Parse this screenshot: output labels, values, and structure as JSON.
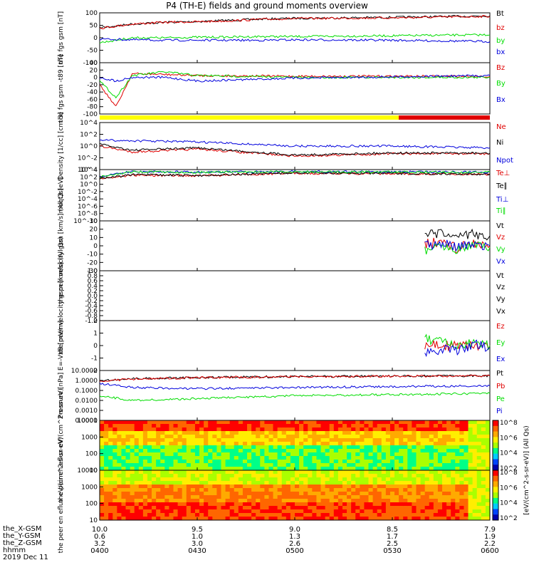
{
  "title": "P4 (TH-E) fields and ground moments overview",
  "colors": {
    "black": "#000000",
    "red": "#e00000",
    "green": "#00dd00",
    "blue": "#0000dd",
    "yellow": "#ffff00"
  },
  "x_axis": {
    "tick_labels": [
      "0400",
      "0430",
      "0500",
      "0530",
      "0600"
    ],
    "rows": [
      {
        "name": "the_X-GSM",
        "values": [
          "10.0",
          "9.5",
          "9.0",
          "8.5",
          "7.9"
        ]
      },
      {
        "name": "the_Y-GSM",
        "values": [
          "0.6",
          "1.0",
          "1.3",
          "1.7",
          "1.9"
        ]
      },
      {
        "name": "the_Z-GSM",
        "values": [
          "3.2",
          "3.0",
          "2.6",
          "2.5",
          "2.2"
        ]
      },
      {
        "name": "hhmm",
        "values": [
          "0400",
          "0430",
          "0500",
          "0530",
          "0600"
        ]
      }
    ],
    "date": "2019 Dec 11"
  },
  "colorbar_label": "[eV/(cm^2-s-sr-eV)] (All Qs)",
  "chart_data": [
    {
      "type": "line",
      "panel": "the fgs gsm",
      "ylabel": "the fgs gsm [nT]",
      "yticks": [
        "100",
        "50",
        "0",
        "-50",
        "-100"
      ],
      "ylim": [
        -100,
        100
      ],
      "legend": [
        "Bt",
        "bz",
        "by",
        "bx"
      ],
      "series": [
        {
          "name": "Bt",
          "color": "#000000",
          "x": [
            "0400",
            "0410",
            "0420",
            "0430",
            "0440",
            "0450",
            "0500",
            "0530",
            "0600"
          ],
          "y": [
            40,
            55,
            62,
            65,
            70,
            75,
            78,
            82,
            88
          ]
        },
        {
          "name": "bz",
          "color": "#e00000",
          "x": [
            "0400",
            "0410",
            "0420",
            "0430",
            "0440",
            "0450",
            "0500",
            "0530",
            "0600"
          ],
          "y": [
            38,
            55,
            62,
            64,
            68,
            74,
            77,
            80,
            86
          ]
        },
        {
          "name": "by",
          "color": "#00dd00",
          "x": [
            "0400",
            "0410",
            "0420",
            "0430",
            "0440",
            "0450",
            "0500",
            "0530",
            "0600"
          ],
          "y": [
            -20,
            0,
            0,
            2,
            3,
            5,
            5,
            8,
            12
          ]
        },
        {
          "name": "bx",
          "color": "#0000dd",
          "x": [
            "0400",
            "0410",
            "0420",
            "0430",
            "0440",
            "0450",
            "0500",
            "0530",
            "0600"
          ],
          "y": [
            -5,
            -8,
            -10,
            -10,
            -10,
            -10,
            -8,
            -10,
            -15
          ]
        }
      ]
    },
    {
      "type": "line",
      "panel": "the fgs gsm -t89",
      "ylabel": "the fgs gsm -t89 [nT]",
      "yticks": [
        "40",
        "20",
        "0",
        "-20",
        "-40",
        "-60",
        "-80",
        "-100"
      ],
      "ylim": [
        -100,
        40
      ],
      "legend": [
        "Bz",
        "By",
        "Bx"
      ],
      "series": [
        {
          "name": "Bz",
          "color": "#e00000",
          "x": [
            "0400",
            "0405",
            "0410",
            "0420",
            "0430",
            "0500",
            "0600"
          ],
          "y": [
            -20,
            -80,
            10,
            8,
            5,
            3,
            3
          ]
        },
        {
          "name": "By",
          "color": "#00dd00",
          "x": [
            "0400",
            "0405",
            "0410",
            "0420",
            "0430",
            "0500",
            "0600"
          ],
          "y": [
            -10,
            -55,
            5,
            15,
            5,
            0,
            0
          ]
        },
        {
          "name": "Bx",
          "color": "#0000dd",
          "x": [
            "0400",
            "0405",
            "0410",
            "0420",
            "0430",
            "0500",
            "0600"
          ],
          "y": [
            0,
            -10,
            0,
            0,
            -10,
            -2,
            5
          ]
        }
      ]
    },
    {
      "type": "line",
      "panel": "Density",
      "ylabel": "Density [1/cc] [cm-3]",
      "yticks": [
        "10^4",
        "10^2",
        "10^0",
        "10^-2",
        "10^-4"
      ],
      "y_scale": "log",
      "legend": [
        "Ne",
        "Ni",
        "Npot"
      ],
      "series": [
        {
          "name": "Ne",
          "color": "#e00000",
          "x": [
            "0400",
            "0410",
            "0430",
            "0500",
            "0530",
            "0600"
          ],
          "y": [
            1,
            0.1,
            0.3,
            0.02,
            0.05,
            0.05
          ]
        },
        {
          "name": "Ni",
          "color": "#000000",
          "x": [
            "0400",
            "0410",
            "0430",
            "0500",
            "0530",
            "0600"
          ],
          "y": [
            2,
            0.2,
            0.5,
            0.03,
            0.07,
            0.06
          ]
        },
        {
          "name": "Npot",
          "color": "#0000dd",
          "x": [
            "0400",
            "0410",
            "0430",
            "0500",
            "0530",
            "0600"
          ],
          "y": [
            10,
            8,
            5,
            1,
            1,
            0.5
          ]
        }
      ]
    },
    {
      "type": "line",
      "panel": "moqt3",
      "ylabel": "moqt3 [eV]",
      "yticks": [
        "10^4",
        "10^2",
        "10^0",
        "10^-2",
        "10^-4",
        "10^-6",
        "10^-8",
        "10^-10"
      ],
      "y_scale": "log",
      "legend": [
        "Te⊥",
        "Te∥",
        "Ti⊥",
        "Ti∥"
      ],
      "series": [
        {
          "name": "Te⊥",
          "color": "#e00000",
          "x": [
            "0400",
            "0410",
            "0430",
            "0500",
            "0600"
          ],
          "y": [
            30,
            300,
            200,
            1000,
            500
          ]
        },
        {
          "name": "Te∥",
          "color": "#000000",
          "x": [
            "0400",
            "0410",
            "0430",
            "0500",
            "0600"
          ],
          "y": [
            40,
            400,
            250,
            1200,
            600
          ]
        },
        {
          "name": "Ti⊥",
          "color": "#0000dd",
          "x": [
            "0400",
            "0410",
            "0430",
            "0500",
            "0600"
          ],
          "y": [
            100,
            3000,
            2000,
            3000,
            2000
          ]
        },
        {
          "name": "Ti∥",
          "color": "#00dd00",
          "x": [
            "0400",
            "0410",
            "0430",
            "0500",
            "0600"
          ],
          "y": [
            100,
            2500,
            1800,
            2500,
            1800
          ]
        }
      ]
    },
    {
      "type": "line",
      "panel": "the peir velocity gsm",
      "ylabel": "the peir velocity gsm [km/s] (All Qs)",
      "yticks": [
        "30",
        "20",
        "10",
        "0",
        "-10",
        "-20",
        "-30"
      ],
      "ylim": [
        -30,
        30
      ],
      "legend": [
        "Vt",
        "Vz",
        "Vy",
        "Vx"
      ],
      "series": [
        {
          "name": "Vt",
          "color": "#000000",
          "x": [
            "0540",
            "0545",
            "0550",
            "0555",
            "0600"
          ],
          "y": [
            12,
            15,
            10,
            14,
            12
          ]
        },
        {
          "name": "Vz",
          "color": "#e00000",
          "x": [
            "0540",
            "0545",
            "0550",
            "0555",
            "0600"
          ],
          "y": [
            2,
            5,
            -3,
            4,
            0
          ]
        },
        {
          "name": "Vy",
          "color": "#00dd00",
          "x": [
            "0540",
            "0545",
            "0550",
            "0555",
            "0600"
          ],
          "y": [
            -5,
            2,
            -4,
            3,
            -2
          ]
        },
        {
          "name": "Vx",
          "color": "#0000dd",
          "x": [
            "0540",
            "0545",
            "0550",
            "0555",
            "0600"
          ],
          "y": [
            0,
            3,
            -2,
            1,
            0
          ]
        }
      ]
    },
    {
      "type": "line",
      "panel": "the peer velocity gsm",
      "ylabel": "the peer velocity gsm [km/s] (All Qs)",
      "yticks": [
        "1.0",
        "0.8",
        "0.6",
        "0.4",
        "0.2",
        "0.0",
        "-0.2",
        "-0.4",
        "-0.6",
        "-0.8",
        "-1.0"
      ],
      "ylim": [
        -1,
        1
      ],
      "legend": [
        "Vt",
        "Vz",
        "Vy",
        "Vx"
      ],
      "series": []
    },
    {
      "type": "line",
      "panel": "E=-VxB",
      "ylabel": "E=-VxB [mV/m]",
      "yticks": [
        "2",
        "1",
        "0",
        "-1",
        "-2"
      ],
      "ylim": [
        -2,
        2
      ],
      "legend": [
        "Ez",
        "Ey",
        "Ex"
      ],
      "series": [
        {
          "name": "Ez",
          "color": "#e00000",
          "x": [
            "0540",
            "0545",
            "0550",
            "0555",
            "0600"
          ],
          "y": [
            0,
            0,
            0,
            0,
            0
          ]
        },
        {
          "name": "Ey",
          "color": "#00dd00",
          "x": [
            "0540",
            "0545",
            "0550",
            "0555",
            "0600"
          ],
          "y": [
            0.5,
            0.3,
            -0.2,
            0.2,
            0
          ]
        },
        {
          "name": "Ex",
          "color": "#0000dd",
          "x": [
            "0540",
            "0545",
            "0550",
            "0555",
            "0600"
          ],
          "y": [
            -0.5,
            -0.3,
            -0.4,
            0.1,
            -0.2
          ]
        }
      ]
    },
    {
      "type": "line",
      "panel": "Pressure",
      "ylabel": "Pressure [nPa]",
      "yticks": [
        "10.0000",
        "1.0000",
        "0.1000",
        "0.0100",
        "0.0010",
        "0.0001"
      ],
      "y_scale": "log",
      "legend": [
        "Pt",
        "Pb",
        "Pe",
        "Pi"
      ],
      "series": [
        {
          "name": "Pt",
          "color": "#000000",
          "x": [
            "0400",
            "0410",
            "0430",
            "0500",
            "0600"
          ],
          "y": [
            1.0,
            1.5,
            2.0,
            2.5,
            3.0
          ]
        },
        {
          "name": "Pb",
          "color": "#e00000",
          "x": [
            "0400",
            "0410",
            "0430",
            "0500",
            "0600"
          ],
          "y": [
            0.9,
            1.4,
            1.9,
            2.4,
            2.9
          ]
        },
        {
          "name": "Pe",
          "color": "#00dd00",
          "x": [
            "0400",
            "0410",
            "0430",
            "0500",
            "0600"
          ],
          "y": [
            0.03,
            0.01,
            0.015,
            0.03,
            0.05
          ]
        },
        {
          "name": "Pi",
          "color": "#0000dd",
          "x": [
            "0400",
            "0410",
            "0430",
            "0500",
            "0600"
          ],
          "y": [
            0.5,
            0.2,
            0.15,
            0.2,
            0.3
          ]
        }
      ]
    },
    {
      "type": "heatmap",
      "panel": "the peir en eflux",
      "ylabel": "the peir en eflux eV/(cm^2-s-sr-eV)",
      "yticks": [
        "10000",
        "1000",
        "100",
        "10"
      ],
      "y_scale": "log",
      "colorbar_ticks": [
        "10^8",
        "10^6",
        "10^4",
        "10^2"
      ]
    },
    {
      "type": "heatmap",
      "panel": "the peer en eflux",
      "ylabel": "the peer en eflux eV/(cm^2-s-sr-eV)",
      "yticks": [
        "10000",
        "1000",
        "100",
        "10"
      ],
      "y_scale": "log",
      "colorbar_ticks": [
        "10^8",
        "10^6",
        "10^4",
        "10^2"
      ]
    }
  ]
}
